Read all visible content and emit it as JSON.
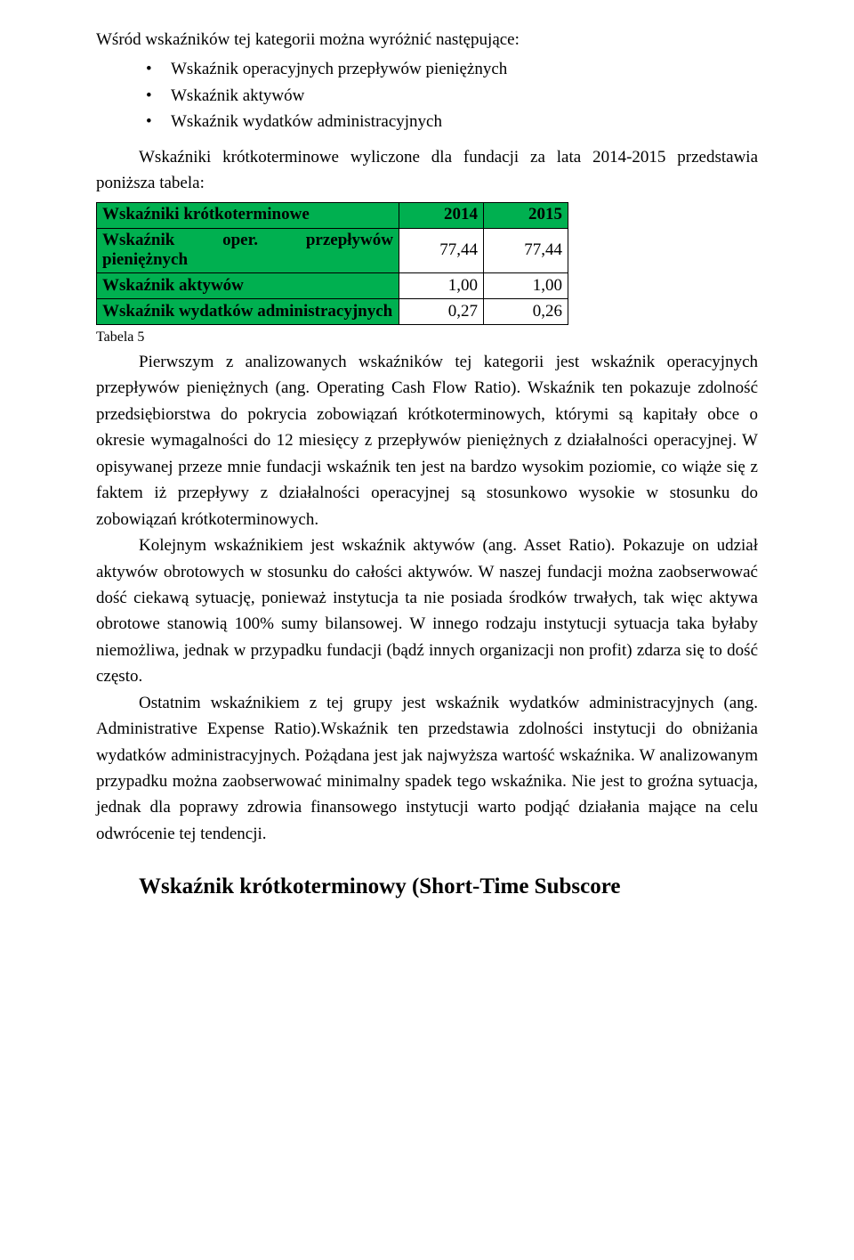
{
  "intro": "Wśród wskaźników tej kategorii można wyróżnić następujące:",
  "bullets": [
    "Wskaźnik operacyjnych przepływów pieniężnych",
    "Wskaźnik aktywów",
    "Wskaźnik wydatków administracyjnych"
  ],
  "lead_para": "Wskaźniki krótkoterminowe wyliczone dla fundacji za lata 2014-2015 przedstawia poniższa tabela:",
  "table": {
    "columns": [
      "Wskaźniki krótkoterminowe",
      "2014",
      "2015"
    ],
    "rows": [
      {
        "label": "Wskaźnik oper. przepływów pieniężnych",
        "v2014": "77,44",
        "v2015": "77,44"
      },
      {
        "label": "Wskaźnik aktywów",
        "v2014": "1,00",
        "v2015": "1,00"
      },
      {
        "label": "Wskaźnik wydatków administracyjnych",
        "v2014": "0,27",
        "v2015": "0,26"
      }
    ],
    "caption": "Tabela 5",
    "header_bg": "#00b050",
    "border_color": "#000000"
  },
  "para1": "Pierwszym z analizowanych wskaźników tej kategorii jest wskaźnik operacyjnych przepływów pieniężnych (ang. Operating Cash Flow Ratio). Wskaźnik ten pokazuje zdolność przedsiębiorstwa do pokrycia zobowiązań krótkoterminowych, którymi są kapitały obce o okresie wymagalności do 12 miesięcy z przepływów pieniężnych z działalności operacyjnej. W opisywanej przeze mnie fundacji wskaźnik ten jest na bardzo wysokim poziomie, co wiąże się z faktem iż przepływy z działalności operacyjnej są stosunkowo wysokie w stosunku do zobowiązań krótkoterminowych.",
  "para2": "Kolejnym wskaźnikiem jest wskaźnik aktywów (ang. Asset Ratio). Pokazuje on udział aktywów obrotowych w stosunku do całości aktywów. W naszej fundacji można zaobserwować dość ciekawą sytuację, ponieważ instytucja ta nie posiada środków trwałych, tak więc aktywa obrotowe stanowią 100% sumy bilansowej. W innego rodzaju instytucji sytuacja taka byłaby niemożliwa, jednak w przypadku fundacji (bądź innych organizacji non profit) zdarza się to dość często.",
  "para3": "Ostatnim wskaźnikiem z tej grupy jest wskaźnik wydatków administracyjnych (ang. Administrative Expense Ratio).Wskaźnik ten przedstawia zdolności instytucji do obniżania wydatków administracyjnych. Pożądana jest jak najwyższa wartość wskaźnika. W analizowanym przypadku można zaobserwować minimalny spadek tego wskaźnika. Nie jest to groźna sytuacja, jednak dla poprawy zdrowia finansowego instytucji warto podjąć działania mające na celu odwrócenie tej tendencji.",
  "heading": "Wskaźnik krótkoterminowy (Short-Time Subscore"
}
